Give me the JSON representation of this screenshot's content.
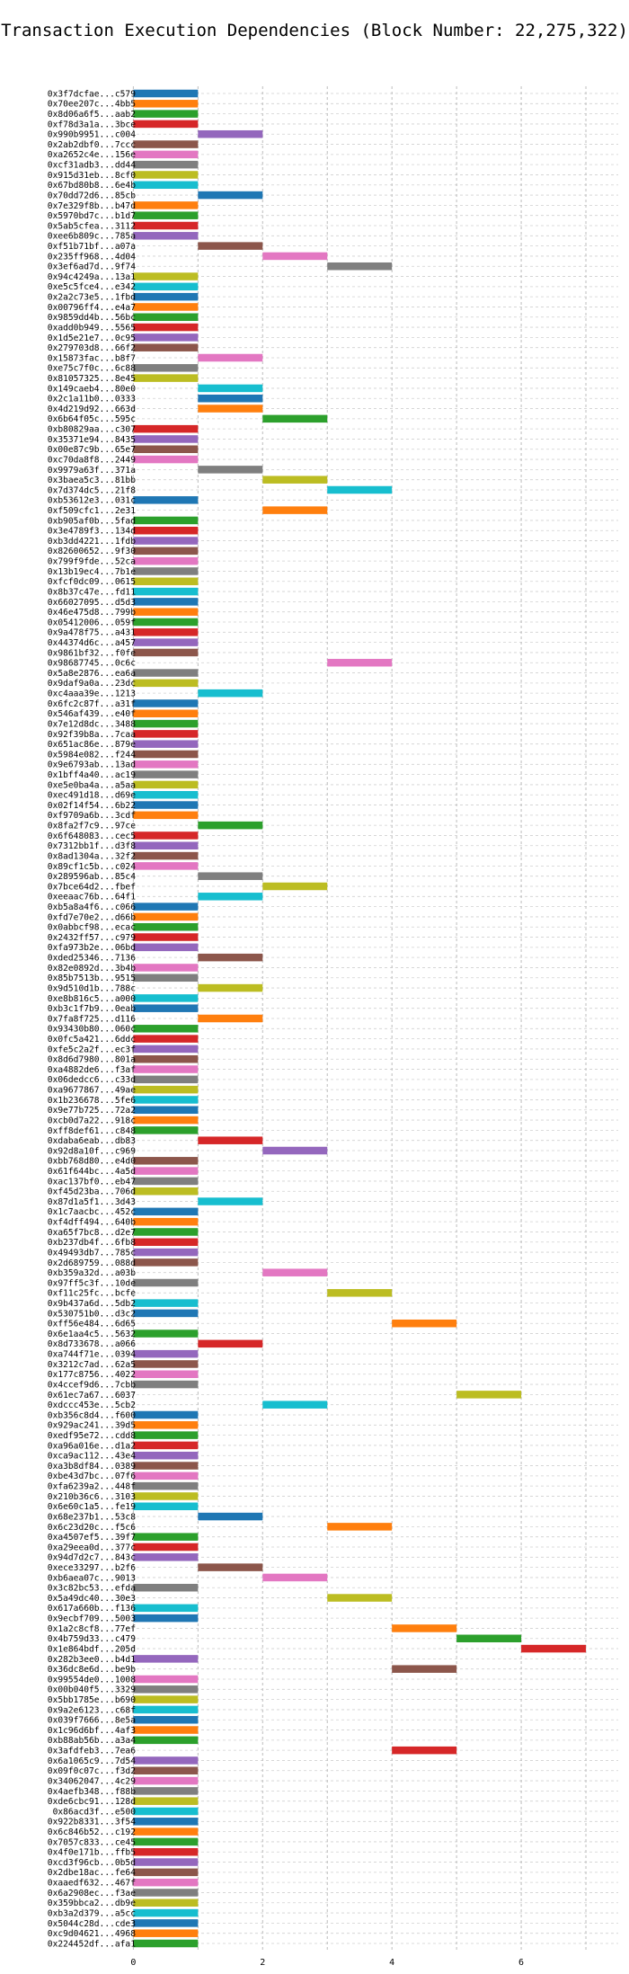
{
  "chart_data": {
    "type": "bar",
    "orientation": "horizontal",
    "title": "Transaction Execution Dependencies (Block Number: 22,275,322)",
    "xlabel": "",
    "ylabel": "",
    "xlim": [
      -0.2,
      7.5
    ],
    "xticks": [
      0,
      2,
      4,
      6
    ],
    "grid": true,
    "legend": "none",
    "colors": [
      "#1f77b4",
      "#ff7f0e",
      "#2ca02c",
      "#d62728",
      "#9467bd",
      "#8c564b",
      "#e377c2",
      "#7f7f7f",
      "#bcbd22",
      "#17becf"
    ],
    "transactions": [
      {
        "label": "0x3f7dcfae...c579",
        "start": 0,
        "end": 1
      },
      {
        "label": "0x70ee207c...4bb5",
        "start": 0,
        "end": 1
      },
      {
        "label": "0x8d06a6f5...aab2",
        "start": 0,
        "end": 1
      },
      {
        "label": "0xf78d3a1a...3bce",
        "start": 0,
        "end": 1
      },
      {
        "label": "0x990b9951...c004",
        "start": 1,
        "end": 2
      },
      {
        "label": "0x2ab2dbf0...7ccc",
        "start": 0,
        "end": 1
      },
      {
        "label": "0xa2652c4e...156e",
        "start": 0,
        "end": 1
      },
      {
        "label": "0xcf31adb3...dd44",
        "start": 0,
        "end": 1
      },
      {
        "label": "0x915d31eb...8cf0",
        "start": 0,
        "end": 1
      },
      {
        "label": "0x67bd80b8...6e4b",
        "start": 0,
        "end": 1
      },
      {
        "label": "0x70dd72d6...85cb",
        "start": 1,
        "end": 2
      },
      {
        "label": "0x7e329f8b...b47d",
        "start": 0,
        "end": 1
      },
      {
        "label": "0x5970bd7c...b1d7",
        "start": 0,
        "end": 1
      },
      {
        "label": "0x5ab5cfea...3112",
        "start": 0,
        "end": 1
      },
      {
        "label": "0xee6b809c...785a",
        "start": 0,
        "end": 1
      },
      {
        "label": "0xf51b71bf...a07a",
        "start": 1,
        "end": 2
      },
      {
        "label": "0x235ff968...4d04",
        "start": 2,
        "end": 3
      },
      {
        "label": "0x3ef6ad7d...9f74",
        "start": 3,
        "end": 4
      },
      {
        "label": "0x94c4249a...13a1",
        "start": 0,
        "end": 1
      },
      {
        "label": "0xe5c5fce4...e342",
        "start": 0,
        "end": 1
      },
      {
        "label": "0x2a2c73e5...1fbd",
        "start": 0,
        "end": 1
      },
      {
        "label": "0x00796ff4...e4a7",
        "start": 0,
        "end": 1
      },
      {
        "label": "0x9859dd4b...56bc",
        "start": 0,
        "end": 1
      },
      {
        "label": "0xadd0b949...5565",
        "start": 0,
        "end": 1
      },
      {
        "label": "0x1d5e21e7...0c95",
        "start": 0,
        "end": 1
      },
      {
        "label": "0x279703d8...66f2",
        "start": 0,
        "end": 1
      },
      {
        "label": "0x15873fac...b8f7",
        "start": 1,
        "end": 2
      },
      {
        "label": "0xe75c7f0c...6c88",
        "start": 0,
        "end": 1
      },
      {
        "label": "0x81057325...8e45",
        "start": 0,
        "end": 1
      },
      {
        "label": "0x149caeb4...80e0",
        "start": 1,
        "end": 2
      },
      {
        "label": "0x2c1a11b0...0333",
        "start": 1,
        "end": 2
      },
      {
        "label": "0x4d219d92...663d",
        "start": 1,
        "end": 2
      },
      {
        "label": "0x6b64f05c...595c",
        "start": 2,
        "end": 3
      },
      {
        "label": "0xb80829aa...c307",
        "start": 0,
        "end": 1
      },
      {
        "label": "0x35371e94...8435",
        "start": 0,
        "end": 1
      },
      {
        "label": "0x00e87c9b...65e7",
        "start": 0,
        "end": 1
      },
      {
        "label": "0xc70da8f8...2449",
        "start": 0,
        "end": 1
      },
      {
        "label": "0x9979a63f...371a",
        "start": 1,
        "end": 2
      },
      {
        "label": "0x3baea5c3...81bb",
        "start": 2,
        "end": 3
      },
      {
        "label": "0x7d374dc5...21f8",
        "start": 3,
        "end": 4
      },
      {
        "label": "0xb53612e3...031c",
        "start": 0,
        "end": 1
      },
      {
        "label": "0xf509cfc1...2e31",
        "start": 2,
        "end": 3
      },
      {
        "label": "0xb905af0b...5fad",
        "start": 0,
        "end": 1
      },
      {
        "label": "0x3e4789f3...134d",
        "start": 0,
        "end": 1
      },
      {
        "label": "0xb3dd4221...1fdb",
        "start": 0,
        "end": 1
      },
      {
        "label": "0x82600652...9f30",
        "start": 0,
        "end": 1
      },
      {
        "label": "0x799f9fde...52ca",
        "start": 0,
        "end": 1
      },
      {
        "label": "0x13b19ec4...7b1e",
        "start": 0,
        "end": 1
      },
      {
        "label": "0xfcf0dc09...0615",
        "start": 0,
        "end": 1
      },
      {
        "label": "0x8b37c47e...fd11",
        "start": 0,
        "end": 1
      },
      {
        "label": "0x66027095...d5d3",
        "start": 0,
        "end": 1
      },
      {
        "label": "0x46e475d8...799b",
        "start": 0,
        "end": 1
      },
      {
        "label": "0x05412006...059f",
        "start": 0,
        "end": 1
      },
      {
        "label": "0x9a478f75...a431",
        "start": 0,
        "end": 1
      },
      {
        "label": "0x44374d6c...a457",
        "start": 0,
        "end": 1
      },
      {
        "label": "0x9861bf32...f0fe",
        "start": 0,
        "end": 1
      },
      {
        "label": "0x98687745...0c6c",
        "start": 3,
        "end": 4
      },
      {
        "label": "0x5a8e2876...ea6a",
        "start": 0,
        "end": 1
      },
      {
        "label": "0x9daf9a0a...23dc",
        "start": 0,
        "end": 1
      },
      {
        "label": "0xc4aaa39e...1213",
        "start": 1,
        "end": 2
      },
      {
        "label": "0x6fc2c87f...a31f",
        "start": 0,
        "end": 1
      },
      {
        "label": "0x546af439...e40f",
        "start": 0,
        "end": 1
      },
      {
        "label": "0x7e12d8dc...3488",
        "start": 0,
        "end": 1
      },
      {
        "label": "0x92f39b8a...7caa",
        "start": 0,
        "end": 1
      },
      {
        "label": "0x651ac86e...879e",
        "start": 0,
        "end": 1
      },
      {
        "label": "0x5984e082...f244",
        "start": 0,
        "end": 1
      },
      {
        "label": "0x9e6793ab...13ad",
        "start": 0,
        "end": 1
      },
      {
        "label": "0x1bff4a40...ac19",
        "start": 0,
        "end": 1
      },
      {
        "label": "0xe5e0ba4a...a5aa",
        "start": 0,
        "end": 1
      },
      {
        "label": "0xec491d18...d69e",
        "start": 0,
        "end": 1
      },
      {
        "label": "0x02f14f54...6b22",
        "start": 0,
        "end": 1
      },
      {
        "label": "0xf9709a6b...3cdf",
        "start": 0,
        "end": 1
      },
      {
        "label": "0x8fa2f7c9...97ce",
        "start": 1,
        "end": 2
      },
      {
        "label": "0x6f648083...cec5",
        "start": 0,
        "end": 1
      },
      {
        "label": "0x7312bb1f...d3f8",
        "start": 0,
        "end": 1
      },
      {
        "label": "0x8ad1304a...32f2",
        "start": 0,
        "end": 1
      },
      {
        "label": "0x89cf1c5b...c024",
        "start": 0,
        "end": 1
      },
      {
        "label": "0x289596ab...85c4",
        "start": 1,
        "end": 2
      },
      {
        "label": "0x7bce64d2...fbef",
        "start": 2,
        "end": 3
      },
      {
        "label": "0xeeaac76b...64f1",
        "start": 1,
        "end": 2
      },
      {
        "label": "0xb5a8a4f6...c066",
        "start": 0,
        "end": 1
      },
      {
        "label": "0xfd7e70e2...d66b",
        "start": 0,
        "end": 1
      },
      {
        "label": "0x0abbcf98...ecac",
        "start": 0,
        "end": 1
      },
      {
        "label": "0x2432ff57...c979",
        "start": 0,
        "end": 1
      },
      {
        "label": "0xfa973b2e...06bd",
        "start": 0,
        "end": 1
      },
      {
        "label": "0xded25346...7136",
        "start": 1,
        "end": 2
      },
      {
        "label": "0x82e0892d...3b4b",
        "start": 0,
        "end": 1
      },
      {
        "label": "0x85b7513b...9515",
        "start": 0,
        "end": 1
      },
      {
        "label": "0x9d510d1b...788c",
        "start": 1,
        "end": 2
      },
      {
        "label": "0xe8b816c5...a000",
        "start": 0,
        "end": 1
      },
      {
        "label": "0xb3c1f7b9...0eab",
        "start": 0,
        "end": 1
      },
      {
        "label": "0x7fa8f725...d116",
        "start": 1,
        "end": 2
      },
      {
        "label": "0x93430b80...060c",
        "start": 0,
        "end": 1
      },
      {
        "label": "0x0fc5a421...6ddc",
        "start": 0,
        "end": 1
      },
      {
        "label": "0xfe5c2a2f...ec3f",
        "start": 0,
        "end": 1
      },
      {
        "label": "0x8d6d7980...801a",
        "start": 0,
        "end": 1
      },
      {
        "label": "0xa4882de6...f3af",
        "start": 0,
        "end": 1
      },
      {
        "label": "0x06dedcc6...c33d",
        "start": 0,
        "end": 1
      },
      {
        "label": "0xa9677867...49ae",
        "start": 0,
        "end": 1
      },
      {
        "label": "0x1b236678...5fe6",
        "start": 0,
        "end": 1
      },
      {
        "label": "0x9e77b725...72a2",
        "start": 0,
        "end": 1
      },
      {
        "label": "0xcb0d7a22...918c",
        "start": 0,
        "end": 1
      },
      {
        "label": "0xff8def61...c848",
        "start": 0,
        "end": 1
      },
      {
        "label": "0xdaba6eab...db83",
        "start": 1,
        "end": 2
      },
      {
        "label": "0x92d8a10f...c969",
        "start": 2,
        "end": 3
      },
      {
        "label": "0xbb768d80...e4d0",
        "start": 0,
        "end": 1
      },
      {
        "label": "0x61f644bc...4a5d",
        "start": 0,
        "end": 1
      },
      {
        "label": "0xac137bf0...eb47",
        "start": 0,
        "end": 1
      },
      {
        "label": "0xf45d23ba...706d",
        "start": 0,
        "end": 1
      },
      {
        "label": "0x87d1a5f1...3d43",
        "start": 1,
        "end": 2
      },
      {
        "label": "0x1c7aacbc...452c",
        "start": 0,
        "end": 1
      },
      {
        "label": "0xf4dff494...640b",
        "start": 0,
        "end": 1
      },
      {
        "label": "0xa65f7bc8...d2e7",
        "start": 0,
        "end": 1
      },
      {
        "label": "0xb237db4f...6fb8",
        "start": 0,
        "end": 1
      },
      {
        "label": "0x49493db7...785c",
        "start": 0,
        "end": 1
      },
      {
        "label": "0x2d689759...088d",
        "start": 0,
        "end": 1
      },
      {
        "label": "0xb359a32d...a03b",
        "start": 2,
        "end": 3
      },
      {
        "label": "0x97ff5c3f...10de",
        "start": 0,
        "end": 1
      },
      {
        "label": "0xf11c25fc...bcfe",
        "start": 3,
        "end": 4
      },
      {
        "label": "0x9b437a6d...5db2",
        "start": 0,
        "end": 1
      },
      {
        "label": "0x530751b0...d3c2",
        "start": 0,
        "end": 1
      },
      {
        "label": "0xff56e484...6d65",
        "start": 4,
        "end": 5
      },
      {
        "label": "0x6e1aa4c5...5632",
        "start": 0,
        "end": 1
      },
      {
        "label": "0x8d733678...a066",
        "start": 1,
        "end": 2
      },
      {
        "label": "0xa744f71e...0394",
        "start": 0,
        "end": 1
      },
      {
        "label": "0x3212c7ad...62a5",
        "start": 0,
        "end": 1
      },
      {
        "label": "0x177c8756...4022",
        "start": 0,
        "end": 1
      },
      {
        "label": "0x4ccef9d6...7cbb",
        "start": 0,
        "end": 1
      },
      {
        "label": "0x61ec7a67...6037",
        "start": 5,
        "end": 6
      },
      {
        "label": "0xdccc453e...5cb2",
        "start": 2,
        "end": 3
      },
      {
        "label": "0xb356c8d4...f600",
        "start": 0,
        "end": 1
      },
      {
        "label": "0x929ac241...39d5",
        "start": 0,
        "end": 1
      },
      {
        "label": "0xedf95e72...cdd8",
        "start": 0,
        "end": 1
      },
      {
        "label": "0xa96a016e...d1a2",
        "start": 0,
        "end": 1
      },
      {
        "label": "0xca9ac112...43e4",
        "start": 0,
        "end": 1
      },
      {
        "label": "0xa3b8df84...0389",
        "start": 0,
        "end": 1
      },
      {
        "label": "0xbe43d7bc...07f6",
        "start": 0,
        "end": 1
      },
      {
        "label": "0xfa6239a2...448f",
        "start": 0,
        "end": 1
      },
      {
        "label": "0x210b36c6...3103",
        "start": 0,
        "end": 1
      },
      {
        "label": "0x6e60c1a5...fe19",
        "start": 0,
        "end": 1
      },
      {
        "label": "0x68e237b1...53c8",
        "start": 1,
        "end": 2
      },
      {
        "label": "0x6c23d20c...f5c6",
        "start": 3,
        "end": 4
      },
      {
        "label": "0xa4507ef5...39f7",
        "start": 0,
        "end": 1
      },
      {
        "label": "0xa29eea0d...377c",
        "start": 0,
        "end": 1
      },
      {
        "label": "0x94d7d2c7...843c",
        "start": 0,
        "end": 1
      },
      {
        "label": "0xece33297...b2f6",
        "start": 1,
        "end": 2
      },
      {
        "label": "0xb6aea07c...9013",
        "start": 2,
        "end": 3
      },
      {
        "label": "0x3c82bc53...efda",
        "start": 0,
        "end": 1
      },
      {
        "label": "0x5a49dc40...30e3",
        "start": 3,
        "end": 4
      },
      {
        "label": "0x617a660b...f136",
        "start": 0,
        "end": 1
      },
      {
        "label": "0x9ecbf709...5003",
        "start": 0,
        "end": 1
      },
      {
        "label": "0x1a2c8cf8...77ef",
        "start": 4,
        "end": 5
      },
      {
        "label": "0x4b759d33...c479",
        "start": 5,
        "end": 6
      },
      {
        "label": "0x1e864bdf...205d",
        "start": 6,
        "end": 7
      },
      {
        "label": "0x282b3ee0...b4d1",
        "start": 0,
        "end": 1
      },
      {
        "label": "0x36dc8e6d...be9b",
        "start": 4,
        "end": 5
      },
      {
        "label": "0x99554de0...1008",
        "start": 0,
        "end": 1
      },
      {
        "label": "0x00b040f5...3329",
        "start": 0,
        "end": 1
      },
      {
        "label": "0x5bb1785e...b690",
        "start": 0,
        "end": 1
      },
      {
        "label": "0x9a2e6123...c68f",
        "start": 0,
        "end": 1
      },
      {
        "label": "0x039f7666...8e5a",
        "start": 0,
        "end": 1
      },
      {
        "label": "0x1c96d6bf...4af3",
        "start": 0,
        "end": 1
      },
      {
        "label": "0xb88ab56b...a3a4",
        "start": 0,
        "end": 1
      },
      {
        "label": "0x3afdfeb3...7ea6",
        "start": 4,
        "end": 5
      },
      {
        "label": "0x6a1065c9...7d54",
        "start": 0,
        "end": 1
      },
      {
        "label": "0x09f0c07c...f3d2",
        "start": 0,
        "end": 1
      },
      {
        "label": "0x34062047...4c29",
        "start": 0,
        "end": 1
      },
      {
        "label": "0x4aefb348...f88b",
        "start": 0,
        "end": 1
      },
      {
        "label": "0xde6cbc91...128d",
        "start": 0,
        "end": 1
      },
      {
        "label": "0x86acd3f...e500",
        "start": 0,
        "end": 1
      },
      {
        "label": "0x922b8331...3f54",
        "start": 0,
        "end": 1
      },
      {
        "label": "0x6c846b52...c192",
        "start": 0,
        "end": 1
      },
      {
        "label": "0x7057c833...ce45",
        "start": 0,
        "end": 1
      },
      {
        "label": "0x4f0e171b...ffb5",
        "start": 0,
        "end": 1
      },
      {
        "label": "0xcd3f96cb...0b5d",
        "start": 0,
        "end": 1
      },
      {
        "label": "0x2dbe18ac...fe64",
        "start": 0,
        "end": 1
      },
      {
        "label": "0xaaedf632...467f",
        "start": 0,
        "end": 1
      },
      {
        "label": "0x6a2908ec...f3ae",
        "start": 0,
        "end": 1
      },
      {
        "label": "0x359bbca2...db9e",
        "start": 0,
        "end": 1
      },
      {
        "label": "0xb3a2d379...a5cc",
        "start": 0,
        "end": 1
      },
      {
        "label": "0x5044c28d...cde3",
        "start": 0,
        "end": 1
      },
      {
        "label": "0xc9d04621...4968",
        "start": 0,
        "end": 1
      },
      {
        "label": "0x224452df...afa1",
        "start": 0,
        "end": 1
      }
    ]
  }
}
